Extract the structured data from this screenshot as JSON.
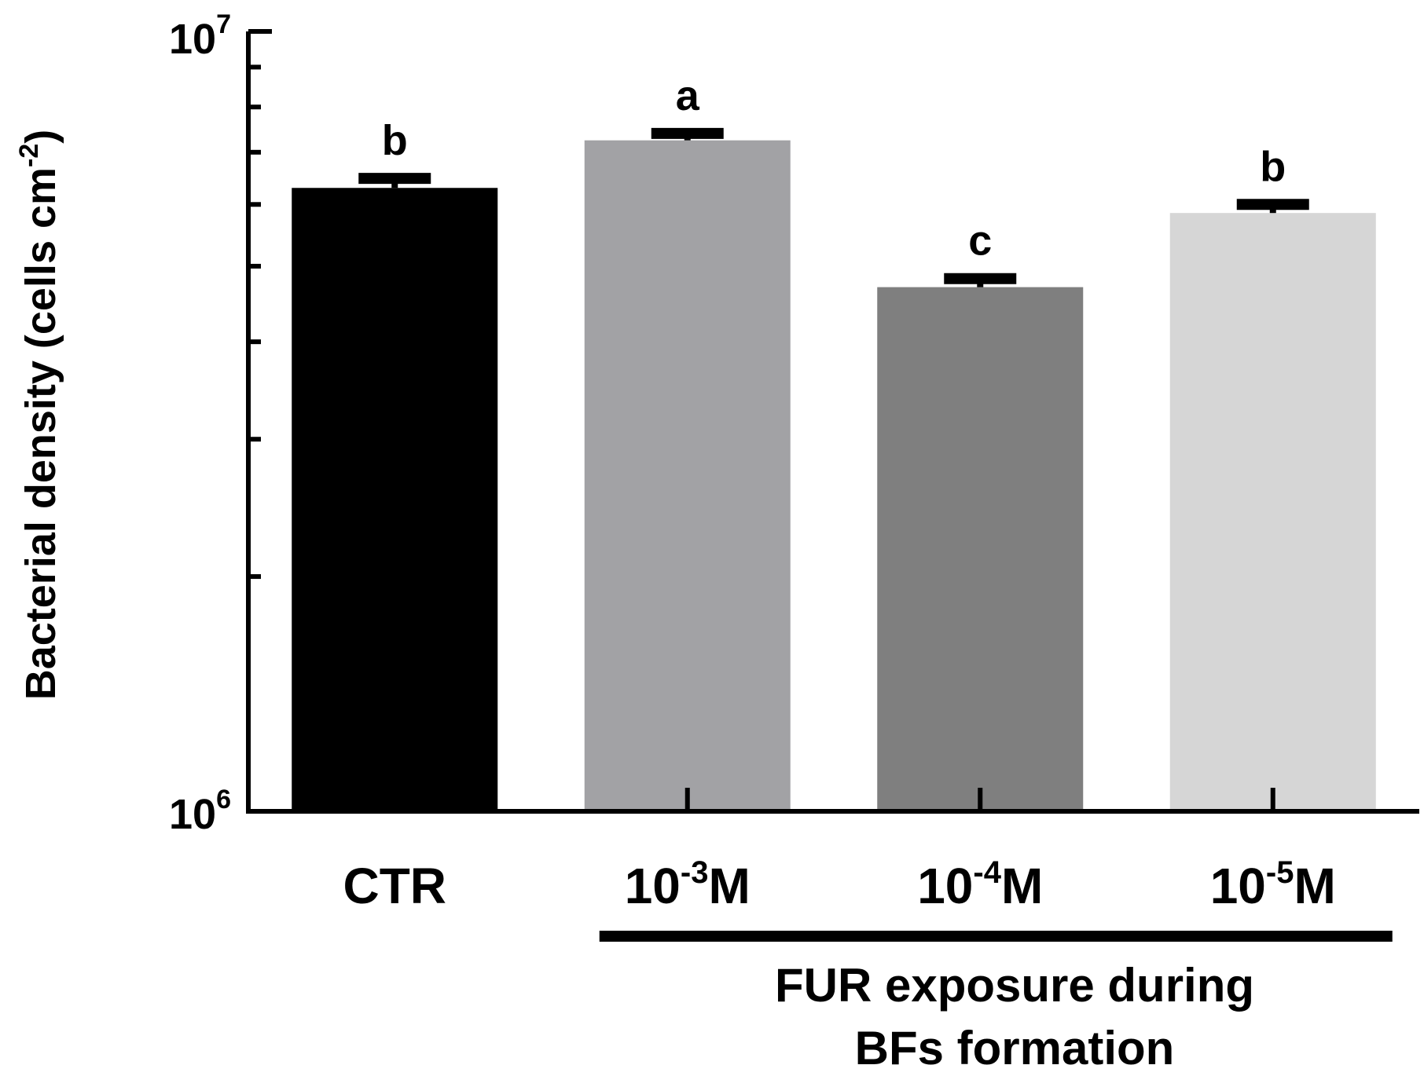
{
  "chart_data": {
    "type": "bar",
    "y_scale": "log",
    "ylim": [
      1000000,
      10000000
    ],
    "ylabel": "Bacterial density (cells cm-2)",
    "ylabel_main": "Bacterial density (cells cm",
    "ylabel_sup": "-2",
    "ylabel_end": ")",
    "y_ticks": [
      {
        "base": "10",
        "exp": "6",
        "value": 1000000
      },
      {
        "base": "10",
        "exp": "7",
        "value": 10000000
      }
    ],
    "categories": [
      {
        "label": "CTR",
        "base": "CTR",
        "sup": "",
        "suffix": ""
      },
      {
        "label": "10-3M",
        "base": "10",
        "sup": "-3",
        "suffix": "M"
      },
      {
        "label": "10-4M",
        "base": "10",
        "sup": "-4",
        "suffix": "M"
      },
      {
        "label": "10-5M",
        "base": "10",
        "sup": "-5",
        "suffix": "M"
      }
    ],
    "values": [
      6300000,
      7250000,
      4700000,
      5850000
    ],
    "errors": [
      180000,
      150000,
      120000,
      150000
    ],
    "significance_letters": [
      "b",
      "a",
      "c",
      "b"
    ],
    "colors": [
      "#000000",
      "#a2a2a5",
      "#7f7f7f",
      "#d6d6d6"
    ],
    "group_label_lines": [
      "FUR exposure during",
      "BFs formation"
    ],
    "group_span": [
      1,
      3
    ],
    "grid": false,
    "legend": "none"
  }
}
